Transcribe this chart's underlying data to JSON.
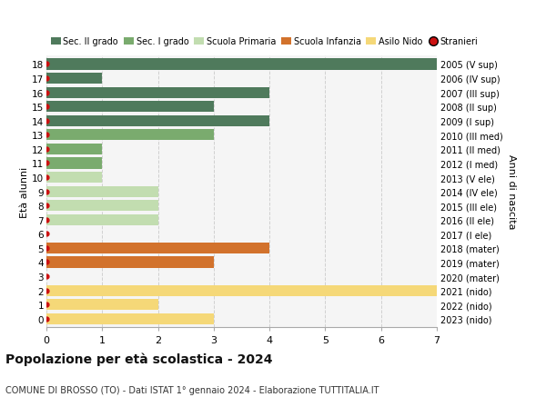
{
  "ages": [
    18,
    17,
    16,
    15,
    14,
    13,
    12,
    11,
    10,
    9,
    8,
    7,
    6,
    5,
    4,
    3,
    2,
    1,
    0
  ],
  "right_labels": [
    "2005 (V sup)",
    "2006 (IV sup)",
    "2007 (III sup)",
    "2008 (II sup)",
    "2009 (I sup)",
    "2010 (III med)",
    "2011 (II med)",
    "2012 (I med)",
    "2013 (V ele)",
    "2014 (IV ele)",
    "2015 (III ele)",
    "2016 (II ele)",
    "2017 (I ele)",
    "2018 (mater)",
    "2019 (mater)",
    "2020 (mater)",
    "2021 (nido)",
    "2022 (nido)",
    "2023 (nido)"
  ],
  "bar_values": [
    7,
    1,
    4,
    3,
    4,
    3,
    1,
    1,
    1,
    2,
    2,
    2,
    0,
    4,
    3,
    0,
    7,
    2,
    3
  ],
  "bar_colors": [
    "#4f7a5c",
    "#4f7a5c",
    "#4f7a5c",
    "#4f7a5c",
    "#4f7a5c",
    "#7aab6e",
    "#7aab6e",
    "#7aab6e",
    "#c2ddb0",
    "#c2ddb0",
    "#c2ddb0",
    "#c2ddb0",
    "#c2ddb0",
    "#d2722c",
    "#d2722c",
    "#d2722c",
    "#f5d878",
    "#f5d878",
    "#f5d878"
  ],
  "stranieri_color": "#cc1111",
  "legend_labels": [
    "Sec. II grado",
    "Sec. I grado",
    "Scuola Primaria",
    "Scuola Infanzia",
    "Asilo Nido",
    "Stranieri"
  ],
  "legend_colors": [
    "#4f7a5c",
    "#7aab6e",
    "#c2ddb0",
    "#d2722c",
    "#f5d878",
    "#cc1111"
  ],
  "title": "Popolazione per età scolastica - 2024",
  "subtitle": "COMUNE DI BROSSO (TO) - Dati ISTAT 1° gennaio 2024 - Elaborazione TUTTITALIA.IT",
  "ylabel_left": "Età alunni",
  "ylabel_right": "Anni di nascita",
  "xlim": [
    0,
    7
  ],
  "bg_color": "#ffffff",
  "plot_bg": "#f5f5f5",
  "grid_color": "#d0d0d0"
}
